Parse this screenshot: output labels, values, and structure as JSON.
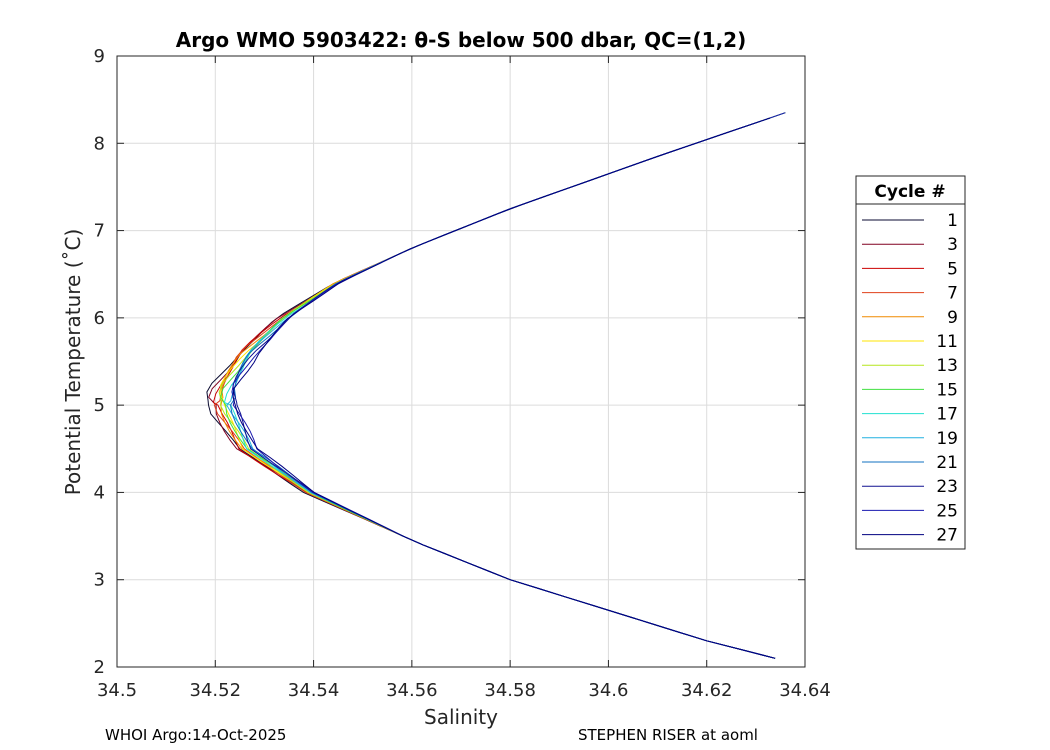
{
  "chart_data": {
    "type": "line",
    "title": "Argo WMO 5903422: θ-S below 500 dbar,  QC=(1,2)",
    "xlabel": "Salinity",
    "ylabel": "Potential Temperature (˚C)",
    "xlim": [
      34.5,
      34.64
    ],
    "ylim": [
      2,
      9
    ],
    "xticks": [
      "34.5",
      "34.52",
      "34.54",
      "34.56",
      "34.58",
      "34.6",
      "34.62",
      "34.64"
    ],
    "yticks": [
      "2",
      "3",
      "4",
      "5",
      "6",
      "7",
      "8",
      "9"
    ],
    "grid": true,
    "legend": {
      "title": "Cycle #",
      "placement": "right",
      "entries": [
        {
          "label": "1",
          "color": "#0a0a30"
        },
        {
          "label": "3",
          "color": "#800020"
        },
        {
          "label": "5",
          "color": "#cc0000"
        },
        {
          "label": "7",
          "color": "#e0401a"
        },
        {
          "label": "9",
          "color": "#f08a00"
        },
        {
          "label": "11",
          "color": "#ffe500"
        },
        {
          "label": "13",
          "color": "#b5e61d"
        },
        {
          "label": "15",
          "color": "#40e040"
        },
        {
          "label": "17",
          "color": "#20e0d0"
        },
        {
          "label": "19",
          "color": "#20b0e0"
        },
        {
          "label": "21",
          "color": "#1070c0"
        },
        {
          "label": "23",
          "color": "#101090"
        },
        {
          "label": "25",
          "color": "#1a1ab0"
        },
        {
          "label": "27",
          "color": "#000080"
        }
      ]
    },
    "profile_shape": {
      "upper_branch": [
        [
          34.636,
          8.35
        ],
        [
          34.61,
          7.85
        ],
        [
          34.58,
          7.25
        ],
        [
          34.56,
          6.8
        ],
        [
          34.545,
          6.4
        ],
        [
          34.535,
          6.0
        ],
        [
          34.528,
          5.6
        ],
        [
          34.524,
          5.2
        ],
        [
          34.524,
          5.0
        ]
      ],
      "lower_branch": [
        [
          34.524,
          5.0
        ],
        [
          34.528,
          4.5
        ],
        [
          34.54,
          4.0
        ],
        [
          34.56,
          3.45
        ],
        [
          34.58,
          3.0
        ],
        [
          34.6,
          2.65
        ],
        [
          34.62,
          2.3
        ],
        [
          34.636,
          2.07
        ]
      ]
    }
  },
  "footer": {
    "left": "WHOI Argo:14-Oct-2025",
    "right": "STEPHEN RISER at aoml"
  }
}
